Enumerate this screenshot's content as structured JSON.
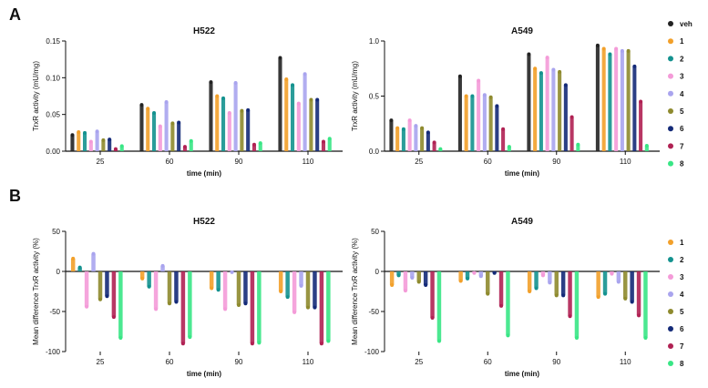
{
  "panels": {
    "a": "A",
    "b": "B"
  },
  "legend_top": [
    "veh",
    "1",
    "2",
    "3",
    "4",
    "5",
    "6",
    "7",
    "8"
  ],
  "legend_bottom": [
    "1",
    "2",
    "3",
    "4",
    "5",
    "6",
    "7",
    "8"
  ],
  "colors": {
    "veh": "#222222",
    "1": "#f2a02a",
    "2": "#14928f",
    "3": "#f49bd8",
    "4": "#a9a4ee",
    "5": "#8e8a2e",
    "6": "#142a78",
    "7": "#b02153",
    "8": "#39e685"
  },
  "chart_data": [
    {
      "type": "bar",
      "title": "H522",
      "xlabel": "time (min)",
      "ylabel": "TrxR activity (mU/mg)",
      "categories": [
        "25",
        "60",
        "90",
        "110"
      ],
      "ylim": [
        0,
        0.15
      ],
      "yticks": [
        "0.00",
        "0.05",
        "0.10",
        "0.15"
      ],
      "series": [
        {
          "name": "veh",
          "values": [
            0.022,
            0.063,
            0.094,
            0.127
          ]
        },
        {
          "name": "1",
          "values": [
            0.026,
            0.058,
            0.075,
            0.098
          ]
        },
        {
          "name": "2",
          "values": [
            0.025,
            0.052,
            0.072,
            0.09
          ]
        },
        {
          "name": "3",
          "values": [
            0.013,
            0.034,
            0.052,
            0.065
          ]
        },
        {
          "name": "4",
          "values": [
            0.027,
            0.067,
            0.093,
            0.105
          ]
        },
        {
          "name": "5",
          "values": [
            0.015,
            0.038,
            0.055,
            0.07
          ]
        },
        {
          "name": "6",
          "values": [
            0.016,
            0.039,
            0.056,
            0.07
          ]
        },
        {
          "name": "7",
          "values": [
            0.003,
            0.006,
            0.009,
            0.013
          ]
        },
        {
          "name": "8",
          "values": [
            0.007,
            0.014,
            0.011,
            0.017
          ]
        }
      ]
    },
    {
      "type": "bar",
      "title": "A549",
      "xlabel": "time (min)",
      "ylabel": "TrxR activity (mU/mg)",
      "categories": [
        "25",
        "60",
        "90",
        "110"
      ],
      "ylim": [
        0,
        1.0
      ],
      "yticks": [
        "0.0",
        "0.5",
        "1.0"
      ],
      "series": [
        {
          "name": "veh",
          "values": [
            0.28,
            0.68,
            0.88,
            0.96
          ]
        },
        {
          "name": "1",
          "values": [
            0.21,
            0.5,
            0.75,
            0.93
          ]
        },
        {
          "name": "2",
          "values": [
            0.2,
            0.5,
            0.71,
            0.88
          ]
        },
        {
          "name": "3",
          "values": [
            0.28,
            0.64,
            0.85,
            0.93
          ]
        },
        {
          "name": "4",
          "values": [
            0.23,
            0.51,
            0.74,
            0.91
          ]
        },
        {
          "name": "5",
          "values": [
            0.21,
            0.49,
            0.72,
            0.91
          ]
        },
        {
          "name": "6",
          "values": [
            0.17,
            0.41,
            0.6,
            0.77
          ]
        },
        {
          "name": "7",
          "values": [
            0.08,
            0.2,
            0.31,
            0.45
          ]
        },
        {
          "name": "8",
          "values": [
            0.02,
            0.04,
            0.06,
            0.05
          ]
        }
      ]
    },
    {
      "type": "bar",
      "title": "H522",
      "xlabel": "time (min)",
      "ylabel": "Mean difference TrxR activity (%)",
      "categories": [
        "25",
        "60",
        "90",
        "110"
      ],
      "ylim": [
        -100,
        50
      ],
      "yticks": [
        "-100",
        "-50",
        "0",
        "50"
      ],
      "series": [
        {
          "name": "1",
          "values": [
            16,
            -9,
            -21,
            -25
          ]
        },
        {
          "name": "2",
          "values": [
            5,
            -19,
            -23,
            -32
          ]
        },
        {
          "name": "3",
          "values": [
            -44,
            -47,
            -47,
            -51
          ]
        },
        {
          "name": "4",
          "values": [
            22,
            7,
            -1,
            -18
          ]
        },
        {
          "name": "5",
          "values": [
            -35,
            -40,
            -42,
            -45
          ]
        },
        {
          "name": "6",
          "values": [
            -31,
            -38,
            -40,
            -45
          ]
        },
        {
          "name": "7",
          "values": [
            -57,
            -90,
            -90,
            -90
          ]
        },
        {
          "name": "8",
          "values": [
            -83,
            -82,
            -89,
            -87
          ]
        }
      ]
    },
    {
      "type": "bar",
      "title": "A549",
      "xlabel": "time (min)",
      "ylabel": "Mean difference TrxR activity (%)",
      "categories": [
        "25",
        "60",
        "90",
        "110"
      ],
      "ylim": [
        -100,
        50
      ],
      "yticks": [
        "-100",
        "-50",
        "0",
        "50"
      ],
      "series": [
        {
          "name": "1",
          "values": [
            -17,
            -12,
            -25,
            -32
          ]
        },
        {
          "name": "2",
          "values": [
            -5,
            -9,
            -21,
            -28
          ]
        },
        {
          "name": "3",
          "values": [
            -24,
            -2,
            -5,
            -3
          ]
        },
        {
          "name": "4",
          "values": [
            -8,
            -6,
            -14,
            -13
          ]
        },
        {
          "name": "5",
          "values": [
            -13,
            -28,
            -30,
            -34
          ]
        },
        {
          "name": "6",
          "values": [
            -17,
            -2,
            -30,
            -38
          ]
        },
        {
          "name": "7",
          "values": [
            -58,
            -43,
            -56,
            -55
          ]
        },
        {
          "name": "8",
          "values": [
            -87,
            -80,
            -83,
            -83
          ]
        }
      ]
    }
  ]
}
